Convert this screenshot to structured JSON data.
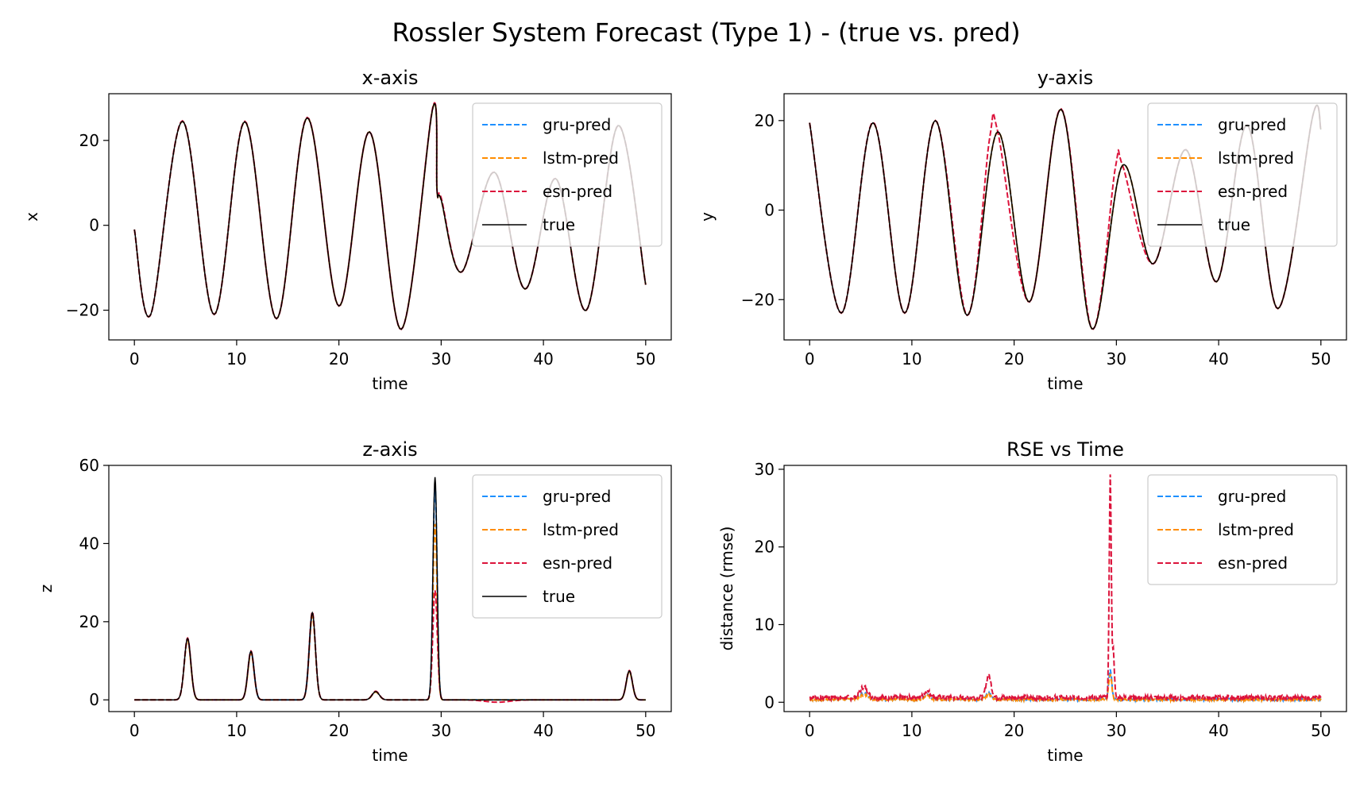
{
  "figure": {
    "suptitle": "Rossler System Forecast (Type 1) - (true vs. pred)"
  },
  "colors": {
    "gru": "#1E90FF",
    "lstm": "#FF8C00",
    "esn": "#DC143C",
    "true": "#000000",
    "axes": "#000000",
    "legend_border": "#cccccc"
  },
  "chart_data": [
    {
      "id": "x",
      "type": "line",
      "title": "x-axis",
      "xlabel": "time",
      "ylabel": "x",
      "xlim": [
        -2.5,
        52.5
      ],
      "ylim": [
        -27,
        31
      ],
      "xticks": [
        0,
        10,
        20,
        30,
        40,
        50
      ],
      "yticks": [
        -20,
        0,
        20
      ],
      "ytick_labels": [
        "−20",
        "0",
        "20"
      ],
      "legend_position": "top-right",
      "series": [
        {
          "name": "gru-pred",
          "style": "dashed",
          "color_key": "gru",
          "points": [
            [
              0,
              -1
            ],
            [
              1.6,
              -21
            ],
            [
              4.7,
              24.5
            ],
            [
              7.8,
              -21
            ],
            [
              10.8,
              24.4
            ],
            [
              13.9,
              -22
            ],
            [
              16.9,
              25.3
            ],
            [
              20,
              -19
            ],
            [
              23,
              22
            ],
            [
              26.1,
              -24.5
            ],
            [
              29.2,
              27.8
            ],
            [
              29.6,
              8
            ],
            [
              30,
              6
            ],
            [
              32,
              -11
            ],
            [
              35.2,
              12.5
            ],
            [
              38.2,
              -15
            ],
            [
              41.2,
              11
            ],
            [
              44.2,
              -20
            ],
            [
              47.3,
              23.5
            ],
            [
              50,
              -14
            ]
          ]
        },
        {
          "name": "lstm-pred",
          "style": "dashed",
          "color_key": "lstm",
          "points": [
            [
              0,
              -1
            ],
            [
              1.6,
              -21
            ],
            [
              4.7,
              24.5
            ],
            [
              7.8,
              -21
            ],
            [
              10.8,
              24.4
            ],
            [
              13.9,
              -22
            ],
            [
              16.9,
              25.3
            ],
            [
              20,
              -19
            ],
            [
              23,
              22
            ],
            [
              26.1,
              -24.5
            ],
            [
              29.2,
              27.8
            ],
            [
              29.6,
              8
            ],
            [
              30,
              6
            ],
            [
              32,
              -11
            ],
            [
              35.2,
              12.5
            ],
            [
              38.2,
              -15
            ],
            [
              41.2,
              11
            ],
            [
              44.2,
              -20
            ],
            [
              47.3,
              23.5
            ],
            [
              50,
              -14
            ]
          ]
        },
        {
          "name": "esn-pred",
          "style": "dashed",
          "color_key": "esn",
          "points": [
            [
              0,
              -1
            ],
            [
              1.6,
              -21
            ],
            [
              4.7,
              24.6
            ],
            [
              7.8,
              -21
            ],
            [
              10.8,
              24.5
            ],
            [
              13.9,
              -22
            ],
            [
              16.9,
              25.4
            ],
            [
              20,
              -19
            ],
            [
              23,
              22
            ],
            [
              26.1,
              -24.5
            ],
            [
              29.2,
              28
            ],
            [
              29.6,
              8
            ],
            [
              30,
              6.5
            ],
            [
              32,
              -11
            ],
            [
              35.2,
              12.5
            ],
            [
              38.2,
              -15
            ],
            [
              41.2,
              11
            ],
            [
              44.2,
              -20
            ],
            [
              47.3,
              23.5
            ],
            [
              50,
              -14
            ]
          ]
        },
        {
          "name": "true",
          "style": "solid",
          "color_key": "true",
          "points": [
            [
              0,
              -1
            ],
            [
              1.6,
              -21
            ],
            [
              4.7,
              24.5
            ],
            [
              7.8,
              -21
            ],
            [
              10.8,
              24.4
            ],
            [
              13.9,
              -22
            ],
            [
              16.9,
              25.3
            ],
            [
              20,
              -19
            ],
            [
              23,
              22
            ],
            [
              26.1,
              -24.5
            ],
            [
              29.2,
              27.8
            ],
            [
              29.6,
              8
            ],
            [
              30,
              6
            ],
            [
              32,
              -11
            ],
            [
              35.2,
              12.5
            ],
            [
              38.2,
              -15
            ],
            [
              41.2,
              11
            ],
            [
              44.2,
              -20
            ],
            [
              47.3,
              23.5
            ],
            [
              50,
              -14
            ]
          ]
        }
      ]
    },
    {
      "id": "y",
      "type": "line",
      "title": "y-axis",
      "xlabel": "time",
      "ylabel": "y",
      "xlim": [
        -2.5,
        52.5
      ],
      "ylim": [
        -29,
        26
      ],
      "xticks": [
        0,
        10,
        20,
        30,
        40,
        50
      ],
      "yticks": [
        -20,
        0,
        20
      ],
      "ytick_labels": [
        "−20",
        "0",
        "20"
      ],
      "legend_position": "top-right",
      "series": [
        {
          "name": "gru-pred",
          "style": "dashed",
          "color_key": "gru",
          "points": [
            [
              0,
              19.5
            ],
            [
              3.1,
              -23
            ],
            [
              6.2,
              19.5
            ],
            [
              9.3,
              -23
            ],
            [
              12.3,
              20
            ],
            [
              15.4,
              -23.5
            ],
            [
              18.4,
              17.5
            ],
            [
              21.5,
              -20.5
            ],
            [
              24.6,
              22.5
            ],
            [
              27.6,
              -26.5
            ],
            [
              30.6,
              10
            ],
            [
              33.6,
              -12
            ],
            [
              36.8,
              13.5
            ],
            [
              39.8,
              -16
            ],
            [
              42.8,
              19
            ],
            [
              45.8,
              -22
            ],
            [
              49.2,
              21
            ],
            [
              50,
              18
            ]
          ]
        },
        {
          "name": "lstm-pred",
          "style": "dashed",
          "color_key": "lstm",
          "points": [
            [
              0,
              19.5
            ],
            [
              3.1,
              -23
            ],
            [
              6.2,
              19.5
            ],
            [
              9.3,
              -23
            ],
            [
              12.3,
              20
            ],
            [
              15.4,
              -23.5
            ],
            [
              18.4,
              17.5
            ],
            [
              21.5,
              -20.5
            ],
            [
              24.6,
              22.5
            ],
            [
              27.6,
              -26.5
            ],
            [
              30.6,
              10
            ],
            [
              33.6,
              -12
            ],
            [
              36.8,
              13.5
            ],
            [
              39.8,
              -16
            ],
            [
              42.8,
              19
            ],
            [
              45.8,
              -22
            ],
            [
              49.2,
              21
            ],
            [
              50,
              18
            ]
          ]
        },
        {
          "name": "esn-pred",
          "style": "dashed",
          "color_key": "esn",
          "points": [
            [
              0,
              19.5
            ],
            [
              3.1,
              -23
            ],
            [
              6.2,
              19.6
            ],
            [
              9.3,
              -23
            ],
            [
              12.3,
              20
            ],
            [
              15.4,
              -23.5
            ],
            [
              17.6,
              16
            ],
            [
              18.4,
              17.5
            ],
            [
              21.5,
              -20.5
            ],
            [
              24.6,
              22.6
            ],
            [
              27.6,
              -26.5
            ],
            [
              29.9,
              9.5
            ],
            [
              30.6,
              10
            ],
            [
              33.6,
              -12
            ],
            [
              36.8,
              13.5
            ],
            [
              39.8,
              -16
            ],
            [
              42.8,
              19
            ],
            [
              45.8,
              -22
            ],
            [
              49.2,
              21
            ],
            [
              50,
              18
            ]
          ]
        },
        {
          "name": "true",
          "style": "solid",
          "color_key": "true",
          "points": [
            [
              0,
              19.5
            ],
            [
              3.1,
              -23
            ],
            [
              6.2,
              19.5
            ],
            [
              9.3,
              -23
            ],
            [
              12.3,
              20
            ],
            [
              15.4,
              -23.5
            ],
            [
              18.4,
              17.5
            ],
            [
              21.5,
              -20.5
            ],
            [
              24.6,
              22.5
            ],
            [
              27.6,
              -26.5
            ],
            [
              30.6,
              10
            ],
            [
              33.6,
              -12
            ],
            [
              36.8,
              13.5
            ],
            [
              39.8,
              -16
            ],
            [
              42.8,
              19
            ],
            [
              45.8,
              -22
            ],
            [
              49.2,
              21
            ],
            [
              50,
              18
            ]
          ]
        }
      ]
    },
    {
      "id": "z",
      "type": "line",
      "title": "z-axis",
      "xlabel": "time",
      "ylabel": "z",
      "xlim": [
        -2.5,
        52.5
      ],
      "ylim": [
        -3,
        60
      ],
      "xticks": [
        0,
        10,
        20,
        30,
        40,
        50
      ],
      "yticks": [
        0,
        20,
        40,
        60
      ],
      "ytick_labels": [
        "0",
        "20",
        "40",
        "60"
      ],
      "legend_position": "top-right",
      "series": [
        {
          "name": "gru-pred",
          "style": "dashed",
          "color_key": "gru",
          "peaks": [
            [
              5.2,
              15.5,
              0.32
            ],
            [
              11.4,
              12.3,
              0.3
            ],
            [
              17.4,
              22,
              0.3
            ],
            [
              23.6,
              2,
              0.35
            ],
            [
              29.4,
              55,
              0.2
            ],
            [
              48.4,
              7.2,
              0.3
            ]
          ]
        },
        {
          "name": "lstm-pred",
          "style": "dashed",
          "color_key": "lstm",
          "peaks": [
            [
              5.2,
              15.3,
              0.32
            ],
            [
              11.4,
              12,
              0.3
            ],
            [
              17.4,
              21.5,
              0.3
            ],
            [
              23.6,
              2,
              0.35
            ],
            [
              29.4,
              45,
              0.2
            ],
            [
              48.4,
              7.2,
              0.3
            ]
          ]
        },
        {
          "name": "esn-pred",
          "style": "dashed",
          "color_key": "esn",
          "peaks": [
            [
              5.2,
              15.8,
              0.32
            ],
            [
              11.4,
              12.5,
              0.3
            ],
            [
              17.4,
              22.5,
              0.3
            ],
            [
              23.6,
              2.2,
              0.35
            ],
            [
              29.4,
              28,
              0.22
            ],
            [
              48.4,
              7.5,
              0.3
            ],
            [
              35.5,
              -0.6,
              1.2
            ]
          ]
        },
        {
          "name": "true",
          "style": "solid",
          "color_key": "true",
          "peaks": [
            [
              5.2,
              15.7,
              0.32
            ],
            [
              11.4,
              12.4,
              0.3
            ],
            [
              17.4,
              22.3,
              0.3
            ],
            [
              23.6,
              2.1,
              0.35
            ],
            [
              29.4,
              57,
              0.2
            ],
            [
              48.4,
              7.4,
              0.3
            ]
          ]
        }
      ]
    },
    {
      "id": "rse",
      "type": "line",
      "title": "RSE vs Time",
      "xlabel": "time",
      "ylabel": "distance (rmse)",
      "xlim": [
        -2.5,
        52.5
      ],
      "ylim": [
        -1.2,
        30.5
      ],
      "xticks": [
        0,
        10,
        20,
        30,
        40,
        50
      ],
      "yticks": [
        0,
        10,
        20,
        30
      ],
      "ytick_labels": [
        "0",
        "10",
        "20",
        "30"
      ],
      "legend_position": "top-right",
      "series": [
        {
          "name": "gru-pred",
          "style": "dashed",
          "color_key": "gru",
          "base": 0.2,
          "noise": 0.3,
          "peaks": [
            [
              5.3,
              0.8,
              0.4
            ],
            [
              11.5,
              0.6,
              0.3
            ],
            [
              17.5,
              0.8,
              0.3
            ],
            [
              29.4,
              3.8,
              0.15
            ]
          ]
        },
        {
          "name": "lstm-pred",
          "style": "dashed",
          "color_key": "lstm",
          "base": 0.2,
          "noise": 0.3,
          "peaks": [
            [
              5.3,
              0.6,
              0.4
            ],
            [
              11.5,
              0.5,
              0.3
            ],
            [
              17.5,
              0.6,
              0.3
            ],
            [
              29.4,
              3.2,
              0.15
            ]
          ]
        },
        {
          "name": "esn-pred",
          "style": "dashed",
          "color_key": "esn",
          "base": 0.3,
          "noise": 0.6,
          "peaks": [
            [
              5.3,
              1.4,
              0.35
            ],
            [
              11.5,
              0.8,
              0.3
            ],
            [
              17.5,
              2.8,
              0.25
            ],
            [
              29.4,
              28.5,
              0.1
            ],
            [
              29.7,
              6,
              0.1
            ]
          ]
        }
      ]
    }
  ]
}
